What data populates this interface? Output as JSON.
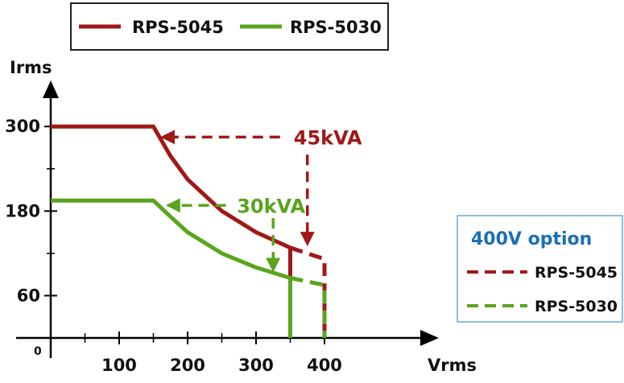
{
  "chart_data": {
    "type": "line",
    "title": "",
    "xlabel": "Vrms",
    "ylabel": "Irms",
    "xlim": [
      0,
      430
    ],
    "ylim": [
      0,
      370
    ],
    "x_ticks": [
      {
        "value": 100,
        "label": "100"
      },
      {
        "value": 200,
        "label": "200"
      },
      {
        "value": 300,
        "label": "300"
      },
      {
        "value": 400,
        "label": "400"
      }
    ],
    "y_ticks": [
      {
        "value": 60,
        "label": "60"
      },
      {
        "value": 180,
        "label": "180"
      },
      {
        "value": 300,
        "label": "300"
      }
    ],
    "origin_label": "0",
    "legend": {
      "position": "top",
      "entries": [
        {
          "name": "RPS-5045",
          "color": "#a01818"
        },
        {
          "name": "RPS-5030",
          "color": "#5aa51e"
        }
      ]
    },
    "series": [
      {
        "name": "RPS-5045",
        "color": "#a01818",
        "style": "solid",
        "points": [
          [
            0,
            300
          ],
          [
            150,
            300
          ],
          [
            175,
            258
          ],
          [
            200,
            225
          ],
          [
            250,
            180
          ],
          [
            300,
            150
          ],
          [
            350,
            128
          ],
          [
            350,
            0
          ]
        ]
      },
      {
        "name": "RPS-5030",
        "color": "#5aa51e",
        "style": "solid",
        "points": [
          [
            0,
            195
          ],
          [
            150,
            195
          ],
          [
            175,
            172
          ],
          [
            200,
            150
          ],
          [
            250,
            120
          ],
          [
            300,
            100
          ],
          [
            350,
            85
          ],
          [
            350,
            0
          ]
        ]
      },
      {
        "name": "RPS-5045",
        "color": "#a01818",
        "style": "dashed",
        "points": [
          [
            350,
            128
          ],
          [
            375,
            120
          ],
          [
            400,
            112
          ],
          [
            400,
            0
          ]
        ]
      },
      {
        "name": "RPS-5030",
        "color": "#5aa51e",
        "style": "dashed",
        "points": [
          [
            350,
            85
          ],
          [
            375,
            80
          ],
          [
            400,
            75
          ],
          [
            400,
            0
          ]
        ]
      }
    ],
    "annotations": [
      {
        "text": "45kVA",
        "color": "#a01818",
        "text_at": [
          355,
          285
        ],
        "h_arrow": {
          "from": [
            335,
            285
          ],
          "to": [
            160,
            285
          ]
        },
        "v_arrow": {
          "from": [
            375,
            260
          ],
          "to": [
            375,
            130
          ]
        }
      },
      {
        "text": "30kVA",
        "color": "#5aa51e",
        "text_at": [
          272,
          188
        ],
        "h_arrow": {
          "from": [
            256,
            188
          ],
          "to": [
            168,
            188
          ]
        },
        "v_arrow": {
          "from": [
            325,
            170
          ],
          "to": [
            325,
            93
          ]
        }
      }
    ],
    "option_box": {
      "title": "400V option",
      "title_color": "#1a6fb5",
      "entries": [
        {
          "name": "RPS-5045",
          "color": "#a01818",
          "style": "dashed"
        },
        {
          "name": "RPS-5030",
          "color": "#5aa51e",
          "style": "dashed"
        }
      ]
    }
  }
}
